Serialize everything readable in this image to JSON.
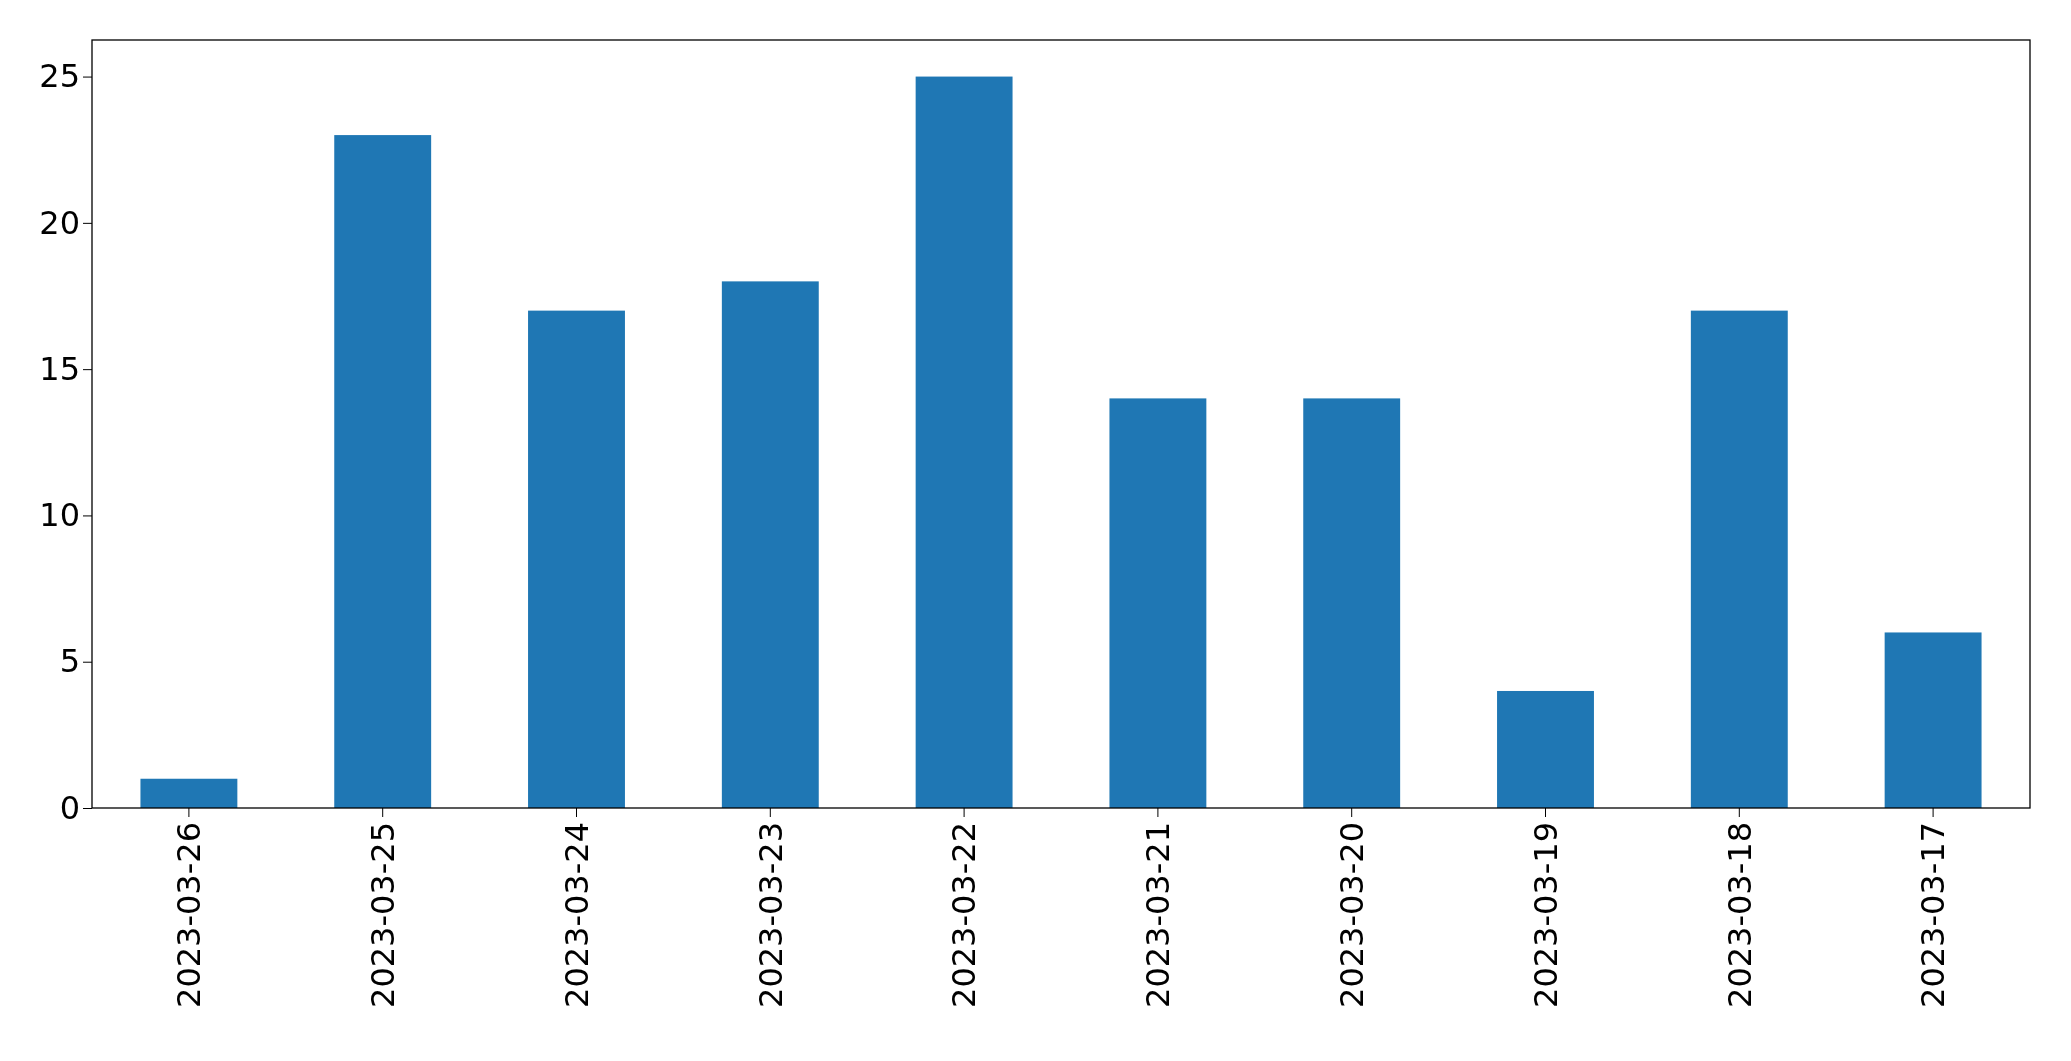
{
  "chart_data": {
    "type": "bar",
    "categories": [
      "2023-03-26",
      "2023-03-25",
      "2023-03-24",
      "2023-03-23",
      "2023-03-22",
      "2023-03-21",
      "2023-03-20",
      "2023-03-19",
      "2023-03-18",
      "2023-03-17"
    ],
    "values": [
      1,
      23,
      17,
      18,
      25,
      14,
      14,
      4,
      17,
      6
    ],
    "color": "#1f77b4",
    "ylim": [
      0,
      26.25
    ],
    "yticks": [
      0,
      5,
      10,
      15,
      20,
      25
    ],
    "grid": false
  }
}
